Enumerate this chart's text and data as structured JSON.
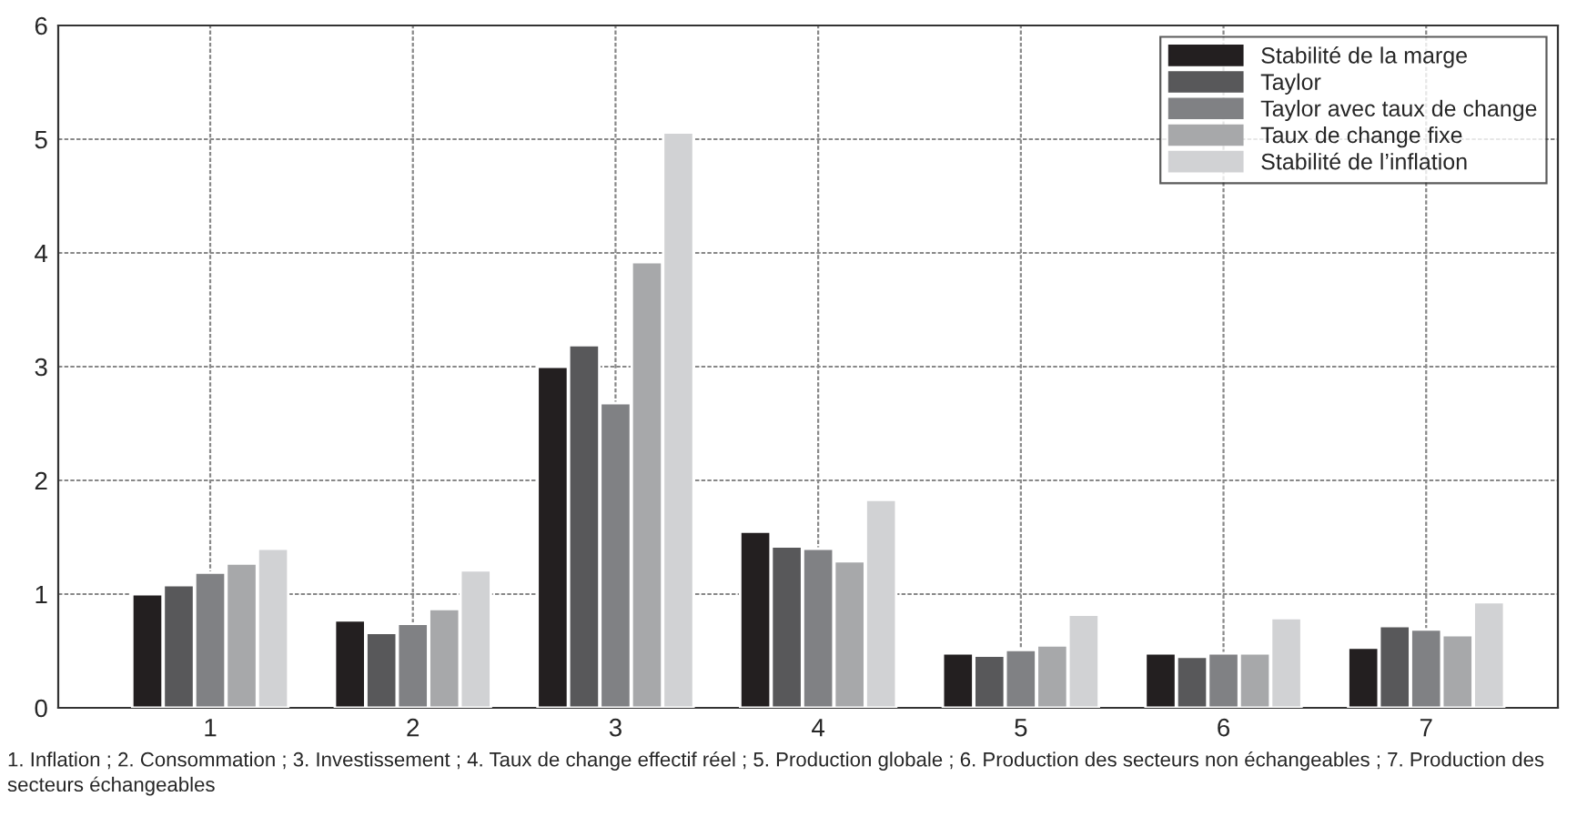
{
  "chart_data": {
    "type": "bar",
    "categories": [
      "1",
      "2",
      "3",
      "4",
      "5",
      "6",
      "7"
    ],
    "series": [
      {
        "name": "Stabilité de la marge",
        "color": "#231f20",
        "values": [
          1.0,
          0.77,
          3.0,
          1.55,
          0.48,
          0.48,
          0.53
        ]
      },
      {
        "name": "Taylor",
        "color": "#58585a",
        "values": [
          1.08,
          0.66,
          3.19,
          1.42,
          0.46,
          0.45,
          0.72
        ]
      },
      {
        "name": "Taylor avec taux de change",
        "color": "#808184",
        "values": [
          1.19,
          0.74,
          2.68,
          1.4,
          0.51,
          0.48,
          0.69
        ]
      },
      {
        "name": "Taux de change fixe",
        "color": "#a7a8aa",
        "values": [
          1.27,
          0.87,
          3.92,
          1.29,
          0.55,
          0.48,
          0.64
        ]
      },
      {
        "name": "Stabilité de l’inflation",
        "color": "#d1d2d4",
        "values": [
          1.4,
          1.21,
          5.06,
          1.83,
          0.82,
          0.79,
          0.93
        ]
      }
    ],
    "ylim": [
      0,
      6
    ],
    "yticks": [
      0,
      1,
      2,
      3,
      4,
      5,
      6
    ],
    "grid": true,
    "legend": "top right",
    "annotations": [
      "1. Inflation ; 2. Consommation ; 3. Investissement ; 4. Taux de change effectif réel ; 5. Production globale ; 6. Production des secteurs non échangeables ; 7. Production des secteurs échangeables"
    ]
  }
}
